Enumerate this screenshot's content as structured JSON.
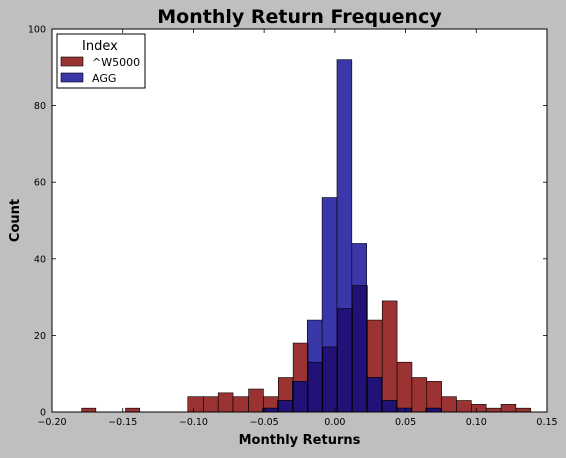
{
  "chart_data": {
    "type": "bar",
    "title": "Monthly Return Frequency",
    "xlabel": "Monthly Returns",
    "ylabel": "Count",
    "xlim": [
      -0.2,
      0.15
    ],
    "ylim": [
      0,
      100
    ],
    "x_ticks": [
      -0.2,
      -0.15,
      -0.1,
      -0.05,
      0.0,
      0.05,
      0.1,
      0.15
    ],
    "x_tick_labels": [
      "−0.20",
      "−0.15",
      "−0.10",
      "−0.05",
      "0.00",
      "0.05",
      "0.10",
      "0.15"
    ],
    "y_ticks": [
      0,
      20,
      40,
      60,
      80,
      100
    ],
    "y_tick_labels": [
      "0",
      "20",
      "40",
      "60",
      "80",
      "100"
    ],
    "legend": {
      "title": "Index",
      "placement": "top-left"
    },
    "overlap_color": "#221177",
    "series": [
      {
        "name": "^W5000",
        "color": "#9a3332",
        "bins": [
          {
            "x0": -0.179,
            "x1": -0.169,
            "count": 1
          },
          {
            "x0": -0.148,
            "x1": -0.138,
            "count": 1
          },
          {
            "x0": -0.104,
            "x1": -0.093,
            "count": 4
          },
          {
            "x0": -0.093,
            "x1": -0.0825,
            "count": 4
          },
          {
            "x0": -0.0825,
            "x1": -0.072,
            "count": 5
          },
          {
            "x0": -0.072,
            "x1": -0.061,
            "count": 4
          },
          {
            "x0": -0.061,
            "x1": -0.0505,
            "count": 6
          },
          {
            "x0": -0.0505,
            "x1": -0.04,
            "count": 4
          },
          {
            "x0": -0.04,
            "x1": -0.0295,
            "count": 9
          },
          {
            "x0": -0.0295,
            "x1": -0.019,
            "count": 18
          },
          {
            "x0": -0.019,
            "x1": -0.0085,
            "count": 13
          },
          {
            "x0": -0.0085,
            "x1": 0.002,
            "count": 17
          },
          {
            "x0": 0.002,
            "x1": 0.0125,
            "count": 27
          },
          {
            "x0": 0.0125,
            "x1": 0.023,
            "count": 33
          },
          {
            "x0": 0.023,
            "x1": 0.0335,
            "count": 24
          },
          {
            "x0": 0.0335,
            "x1": 0.044,
            "count": 29
          },
          {
            "x0": 0.044,
            "x1": 0.0545,
            "count": 13
          },
          {
            "x0": 0.0545,
            "x1": 0.065,
            "count": 9
          },
          {
            "x0": 0.065,
            "x1": 0.0755,
            "count": 8
          },
          {
            "x0": 0.0755,
            "x1": 0.086,
            "count": 4
          },
          {
            "x0": 0.086,
            "x1": 0.0965,
            "count": 3
          },
          {
            "x0": 0.0965,
            "x1": 0.107,
            "count": 2
          },
          {
            "x0": 0.107,
            "x1": 0.1175,
            "count": 1
          },
          {
            "x0": 0.1175,
            "x1": 0.128,
            "count": 2
          },
          {
            "x0": 0.128,
            "x1": 0.1385,
            "count": 1
          }
        ]
      },
      {
        "name": "AGG",
        "color": "#3a37a8",
        "bins": [
          {
            "x0": -0.051,
            "x1": -0.0405,
            "count": 1
          },
          {
            "x0": -0.0405,
            "x1": -0.03,
            "count": 3
          },
          {
            "x0": -0.03,
            "x1": -0.0195,
            "count": 8
          },
          {
            "x0": -0.0195,
            "x1": -0.009,
            "count": 24
          },
          {
            "x0": -0.009,
            "x1": 0.0015,
            "count": 56
          },
          {
            "x0": 0.0015,
            "x1": 0.012,
            "count": 92
          },
          {
            "x0": 0.012,
            "x1": 0.0225,
            "count": 44
          },
          {
            "x0": 0.0225,
            "x1": 0.033,
            "count": 9
          },
          {
            "x0": 0.033,
            "x1": 0.0435,
            "count": 3
          },
          {
            "x0": 0.0435,
            "x1": 0.054,
            "count": 1
          },
          {
            "x0": 0.0645,
            "x1": 0.075,
            "count": 1
          }
        ]
      }
    ]
  }
}
